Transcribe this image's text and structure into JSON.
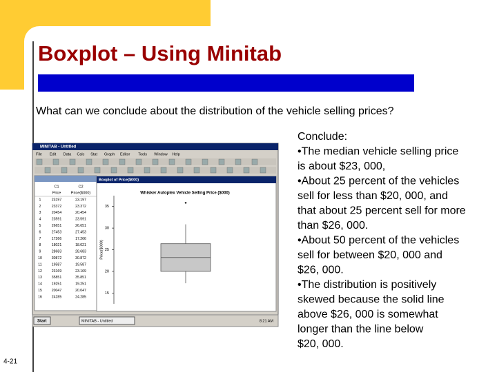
{
  "slide": {
    "title": "Boxplot – Using Minitab",
    "question": "What can we conclude about the distribution of the vehicle selling prices?",
    "conclude": [
      "Conclude:",
      "•The median vehicle selling price",
      "is about $23, 000,",
      "•About 25 percent of the vehicles",
      "sell for less than $20, 000, and",
      "that about 25 percent sell for more",
      "than $26, 000.",
      "•About 50 percent of the vehicles",
      "sell for between $20, 000 and",
      "$26, 000.",
      "•The distribution is positively",
      "skewed because the solid line",
      "above $26, 000 is somewhat",
      "longer than the line below",
      "$20, 000."
    ],
    "page_number": "4-21"
  },
  "screenshot": {
    "window_title": "MINITAB - Untitled",
    "menu": [
      "File",
      "Edit",
      "Data",
      "Calc",
      "Stat",
      "Graph",
      "Editor",
      "Tools",
      "Window",
      "Help"
    ],
    "worksheet": {
      "columns": [
        "C1",
        "C2"
      ],
      "names": [
        "Price",
        "Price($000)"
      ],
      "rows": [
        [
          1,
          23197,
          23.197
        ],
        [
          2,
          23372,
          23.372
        ],
        [
          3,
          20454,
          20.454
        ],
        [
          4,
          23591,
          23.591
        ],
        [
          5,
          26651,
          26.651
        ],
        [
          6,
          27453,
          27.453
        ],
        [
          7,
          17266,
          17.266
        ],
        [
          8,
          18021,
          18.021
        ],
        [
          9,
          28683,
          28.683
        ],
        [
          10,
          30872,
          30.872
        ],
        [
          11,
          19587,
          19.587
        ],
        [
          12,
          23169,
          23.169
        ],
        [
          13,
          35851,
          35.851
        ],
        [
          14,
          19251,
          19.251
        ],
        [
          15,
          20047,
          20.047
        ],
        [
          16,
          24285,
          24.285
        ]
      ]
    },
    "graph_window_title": "Boxplot of Price($000)",
    "taskbar": {
      "start": "Start",
      "task": "MINITAB - Untitled",
      "time": "8:21 AM"
    }
  },
  "chart_data": {
    "type": "box",
    "title": "Whisker Autoplex Vehicle Selling Price ($000)",
    "y_label": "Price($000)",
    "ylim": [
      12.5,
      37.5
    ],
    "yticks": [
      15,
      20,
      25,
      30,
      35
    ],
    "whisker_low": 17.266,
    "q1": 20.0,
    "median": 23.2,
    "q3": 26.4,
    "whisker_high": 30.872,
    "outliers": [
      35.851
    ],
    "color": "#c8c8c8"
  }
}
